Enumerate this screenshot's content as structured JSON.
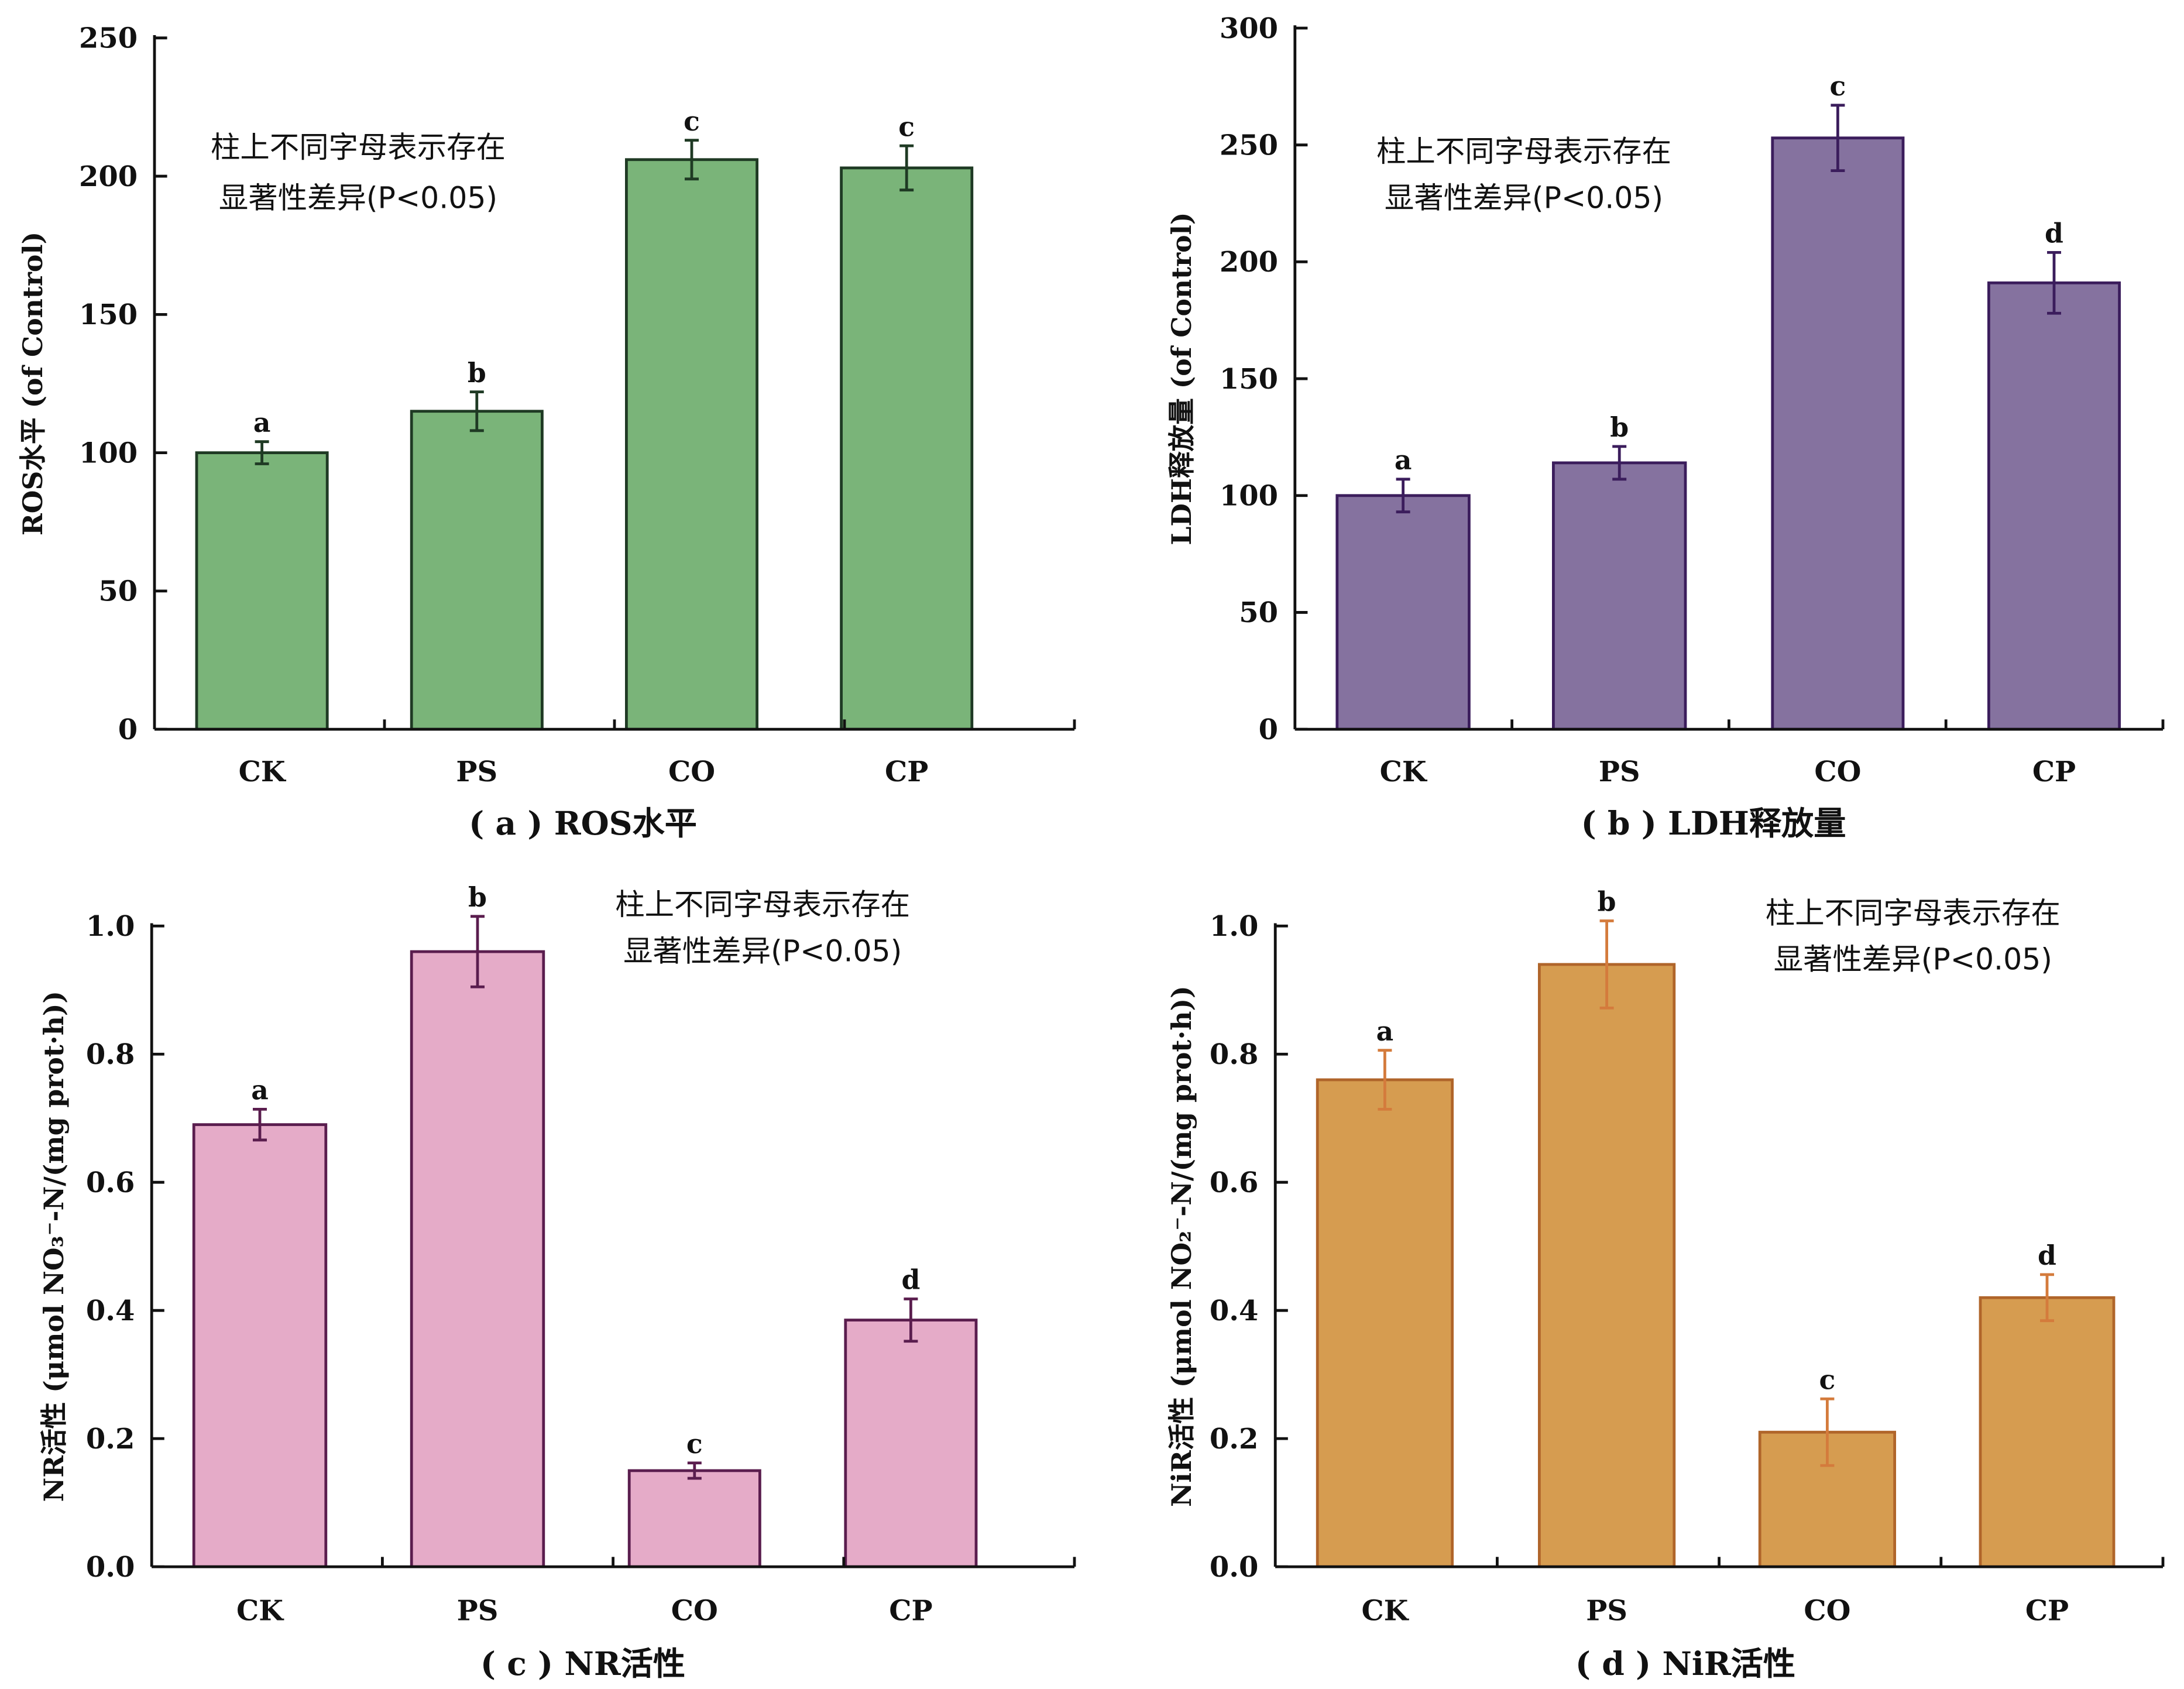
{
  "chart_data": [
    {
      "type": "bar",
      "panel": "a",
      "caption": "( a ) ROS水平",
      "title": "ROS水平",
      "xlabel": "",
      "ylabel": "ROS水平 (of Control)",
      "categories": [
        "CK",
        "PS",
        "CO",
        "CP"
      ],
      "values": [
        100,
        115,
        206,
        203
      ],
      "errors": [
        4,
        7,
        7,
        8
      ],
      "significance_letters": [
        "a",
        "b",
        "c",
        "c"
      ],
      "ylim": [
        0,
        250
      ],
      "yticks": [
        0,
        50,
        100,
        150,
        200,
        250
      ],
      "ytick_labels": [
        "0",
        "50",
        "100",
        "150",
        "200",
        "250"
      ],
      "annotation": [
        "柱上不同字母表示存在",
        "显著性差异(P<0.05)"
      ],
      "annotation_position": "top-left",
      "bar_color": "#7ab479",
      "edge_color": "#1f3a24",
      "grid": false
    },
    {
      "type": "bar",
      "panel": "b",
      "caption": "( b ) LDH释放量",
      "title": "LDH释放量",
      "xlabel": "",
      "ylabel": "LDH释放量 (of Control)",
      "categories": [
        "CK",
        "PS",
        "CO",
        "CP"
      ],
      "values": [
        100,
        114,
        253,
        191
      ],
      "errors": [
        7,
        7,
        14,
        13
      ],
      "significance_letters": [
        "a",
        "b",
        "c",
        "d"
      ],
      "ylim": [
        0,
        300
      ],
      "yticks": [
        0,
        50,
        100,
        150,
        200,
        250,
        300
      ],
      "ytick_labels": [
        "0",
        "50",
        "100",
        "150",
        "200",
        "250",
        "300"
      ],
      "annotation": [
        "柱上不同字母表示存在",
        "显著性差异(P<0.05)"
      ],
      "annotation_position": "top-left",
      "bar_color": "#85729f",
      "edge_color": "#3b1d5c",
      "grid": false
    },
    {
      "type": "bar",
      "panel": "c",
      "caption": "( c ) NR活性",
      "title": "NR活性",
      "xlabel": "",
      "ylabel": "NR活性 (μmol NO₃⁻-N/(mg prot·h))",
      "categories": [
        "CK",
        "PS",
        "CO",
        "CP"
      ],
      "values": [
        0.69,
        0.96,
        0.15,
        0.385
      ],
      "errors": [
        0.024,
        0.055,
        0.012,
        0.033
      ],
      "significance_letters": [
        "a",
        "b",
        "c",
        "d"
      ],
      "ylim": [
        0,
        1.0
      ],
      "yticks": [
        0,
        0.2,
        0.4,
        0.6,
        0.8,
        1.0
      ],
      "ytick_labels": [
        "0.0",
        "0.2",
        "0.4",
        "0.6",
        "0.8",
        "1.0"
      ],
      "annotation": [
        "柱上不同字母表示存在",
        "显著性差异(P<0.05)"
      ],
      "annotation_position": "top-right",
      "bar_color": "#e5abc8",
      "edge_color": "#5a1d4e",
      "grid": false
    },
    {
      "type": "bar",
      "panel": "d",
      "caption": "( d ) NiR活性",
      "title": "NiR活性",
      "xlabel": "",
      "ylabel": "NiR活性 (μmol NO₂⁻-N/(mg prot·h))",
      "categories": [
        "CK",
        "PS",
        "CO",
        "CP"
      ],
      "values": [
        0.76,
        0.94,
        0.21,
        0.42
      ],
      "errors": [
        0.046,
        0.068,
        0.052,
        0.036
      ],
      "significance_letters": [
        "a",
        "b",
        "c",
        "d"
      ],
      "ylim": [
        0,
        1.0
      ],
      "yticks": [
        0,
        0.2,
        0.4,
        0.6,
        0.8,
        1.0
      ],
      "ytick_labels": [
        "0.0",
        "0.2",
        "0.4",
        "0.6",
        "0.8",
        "1.0"
      ],
      "annotation": [
        "柱上不同字母表示存在",
        "显著性差异(P<0.05)"
      ],
      "annotation_position": "top-right",
      "bar_color": "#d69c50",
      "edge_color": "#b0652a",
      "error_color": "#d47b3c",
      "grid": false
    }
  ]
}
